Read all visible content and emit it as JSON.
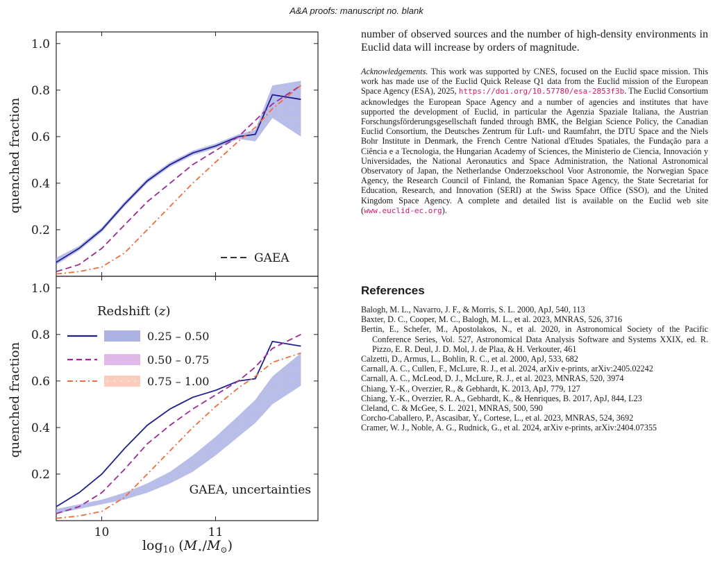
{
  "header": "A&A proofs: manuscript no. blank",
  "intro_text": "number of observed sources and the number of high-density environments in Euclid data will increase by orders of magnitude.",
  "acknowledgements": {
    "lead": "Acknowledgements.",
    "text_before_url": "This work was supported by CNES, focused on the Euclid space mission. This work has made use of the Euclid Quick Release Q1 data from the Euclid mission of the European Space Agency (ESA), 2025,",
    "url": "https://doi.org/10.57780/esa-2853f3b",
    "text_after_url": ". The Euclid Consortium acknowledges the European Space Agency and a number of agencies and institutes that have supported the development of Euclid, in particular the Agenzia Spaziale Italiana, the Austrian Forschungsförderungsgesellschaft funded through BMK, the Belgian Science Policy, the Canadian Euclid Consortium, the Deutsches Zentrum für Luft- und Raumfahrt, the DTU Space and the Niels Bohr Institute in Denmark, the French Centre National d'Etudes Spatiales, the Fundação para a Ciência e a Tecnologia, the Hungarian Academy of Sciences, the Ministerio de Ciencia, Innovación y Universidades, the National Aeronautics and Space Administration, the National Astronomical Observatory of Japan, the Netherlandse Onderzoekschool Voor Astronomie, the Norwegian Space Agency, the Research Council of Finland, the Romanian Space Agency, the State Secretariat for Education, Research, and Innovation (SERI) at the Swiss Space Office (SSO), and the United Kingdom Space Agency. A complete and detailed list is available on the Euclid web site (",
    "url2": "www.euclid-ec.org",
    "text_end": ")."
  },
  "references_title": "References",
  "references": [
    "Balogh, M. L., Navarro, J. F., & Morris, S. L. 2000, ApJ, 540, 113",
    "Baxter, D. C., Cooper, M. C., Balogh, M. L., et al. 2023, MNRAS, 526, 3716",
    "Bertin, E., Schefer, M., Apostolakos, N., et al. 2020, in Astronomical Society of the Pacific Conference Series, Vol. 527, Astronomical Data Analysis Software and Systems XXIX, ed. R. Pizzo, E. R. Deul, J. D. Mol, J. de Plaa, & H. Verkouter, 461",
    "Calzetti, D., Armus, L., Bohlin, R. C., et al. 2000, ApJ, 533, 682",
    "Carnall, A. C., Cullen, F., McLure, R. J., et al. 2024, arXiv e-prints, arXiv:2405.02242",
    "Carnall, A. C., McLeod, D. J., McLure, R. J., et al. 2023, MNRAS, 520, 3974",
    "Chiang, Y.-K., Overzier, R., & Gebhardt, K. 2013, ApJ, 779, 127",
    "Chiang, Y.-K., Overzier, R. A., Gebhardt, K., & Henriques, B. 2017, ApJ, 844, L23",
    "Cleland, C. & McGee, S. L. 2021, MNRAS, 500, 590",
    "Corcho-Caballero, P., Ascasibar, Y., Cortese, L., et al. 2023, MNRAS, 524, 3692",
    "Cramer, W. J., Noble, A. G., Rudnick, G., et al. 2024, arXiv e-prints, arXiv:2404.07355"
  ],
  "colors": {
    "blue": "#1f1f8c",
    "purple": "#9a2a9a",
    "orange": "#ee6d3c",
    "blue_band": "#6a72c6",
    "purple_band": "#c580d2",
    "orange_band": "#f6ad8e"
  },
  "chart_data": [
    {
      "type": "line",
      "panel": "top",
      "ylabel": "quenched fraction",
      "xlim": [
        9.6,
        11.9
      ],
      "ylim": [
        0.0,
        1.05
      ],
      "yticks": [
        "0.2",
        "0.4",
        "0.6",
        "0.8",
        "1.0"
      ],
      "annotation": "GAEA",
      "series": [
        {
          "name": "0.25 – 0.50",
          "x": [
            9.6,
            9.8,
            10.0,
            10.2,
            10.4,
            10.6,
            10.8,
            11.0,
            11.2,
            11.35,
            11.5,
            11.75
          ],
          "y": [
            0.06,
            0.12,
            0.2,
            0.31,
            0.41,
            0.48,
            0.53,
            0.56,
            0.6,
            0.61,
            0.78,
            0.76
          ],
          "band_upper": [
            0.08,
            0.13,
            0.21,
            0.32,
            0.42,
            0.49,
            0.54,
            0.57,
            0.61,
            0.63,
            0.82,
            0.84
          ],
          "band_lower": [
            0.05,
            0.11,
            0.19,
            0.3,
            0.4,
            0.47,
            0.52,
            0.55,
            0.59,
            0.58,
            0.68,
            0.6
          ]
        },
        {
          "name": "0.50 – 0.75",
          "x": [
            9.6,
            9.8,
            10.0,
            10.2,
            10.4,
            10.6,
            10.8,
            11.0,
            11.2,
            11.35,
            11.5,
            11.75
          ],
          "y": [
            0.02,
            0.05,
            0.12,
            0.22,
            0.32,
            0.4,
            0.48,
            0.54,
            0.6,
            0.67,
            0.74,
            0.82
          ]
        },
        {
          "name": "0.75 – 1.00",
          "x": [
            9.6,
            9.8,
            10.0,
            10.2,
            10.4,
            10.6,
            10.8,
            11.0,
            11.2,
            11.35,
            11.5,
            11.75
          ],
          "y": [
            0.01,
            0.02,
            0.04,
            0.1,
            0.2,
            0.3,
            0.4,
            0.49,
            0.58,
            0.64,
            0.72,
            0.82
          ]
        }
      ]
    },
    {
      "type": "line",
      "panel": "bottom",
      "xlabel": "log10(M*/M⊙)",
      "ylabel": "quenched fraction",
      "xlim": [
        9.6,
        11.9
      ],
      "ylim": [
        0.0,
        1.05
      ],
      "xticks": [
        "10",
        "11"
      ],
      "yticks": [
        "0.2",
        "0.4",
        "0.6",
        "0.8",
        "1.0"
      ],
      "annotation": "GAEA, uncertainties",
      "legend_title": "Redshift (z)",
      "legend_entries": [
        "0.25 – 0.50",
        "0.50 – 0.75",
        "0.75 – 1.00"
      ],
      "series": [
        {
          "name": "0.25 – 0.50",
          "x": [
            9.6,
            9.8,
            10.0,
            10.2,
            10.4,
            10.6,
            10.8,
            11.0,
            11.2,
            11.35,
            11.5,
            11.75
          ],
          "y": [
            0.06,
            0.12,
            0.2,
            0.31,
            0.41,
            0.48,
            0.53,
            0.56,
            0.6,
            0.61,
            0.77,
            0.75
          ],
          "band_upper": [
            0.05,
            0.07,
            0.09,
            0.12,
            0.16,
            0.21,
            0.28,
            0.36,
            0.45,
            0.52,
            0.62,
            0.72
          ],
          "band_lower": [
            0.03,
            0.05,
            0.07,
            0.09,
            0.12,
            0.16,
            0.21,
            0.28,
            0.36,
            0.42,
            0.5,
            0.58
          ]
        },
        {
          "name": "0.50 – 0.75",
          "x": [
            9.6,
            9.8,
            10.0,
            10.2,
            10.4,
            10.6,
            10.8,
            11.0,
            11.2,
            11.35,
            11.5,
            11.75
          ],
          "y": [
            0.03,
            0.06,
            0.12,
            0.22,
            0.33,
            0.41,
            0.48,
            0.54,
            0.6,
            0.66,
            0.74,
            0.8
          ]
        },
        {
          "name": "0.75 – 1.00",
          "x": [
            9.6,
            9.8,
            10.0,
            10.2,
            10.4,
            10.6,
            10.8,
            11.0,
            11.2,
            11.35,
            11.5,
            11.75
          ],
          "y": [
            0.01,
            0.02,
            0.04,
            0.1,
            0.2,
            0.3,
            0.4,
            0.49,
            0.57,
            0.62,
            0.68,
            0.72
          ]
        }
      ]
    }
  ]
}
